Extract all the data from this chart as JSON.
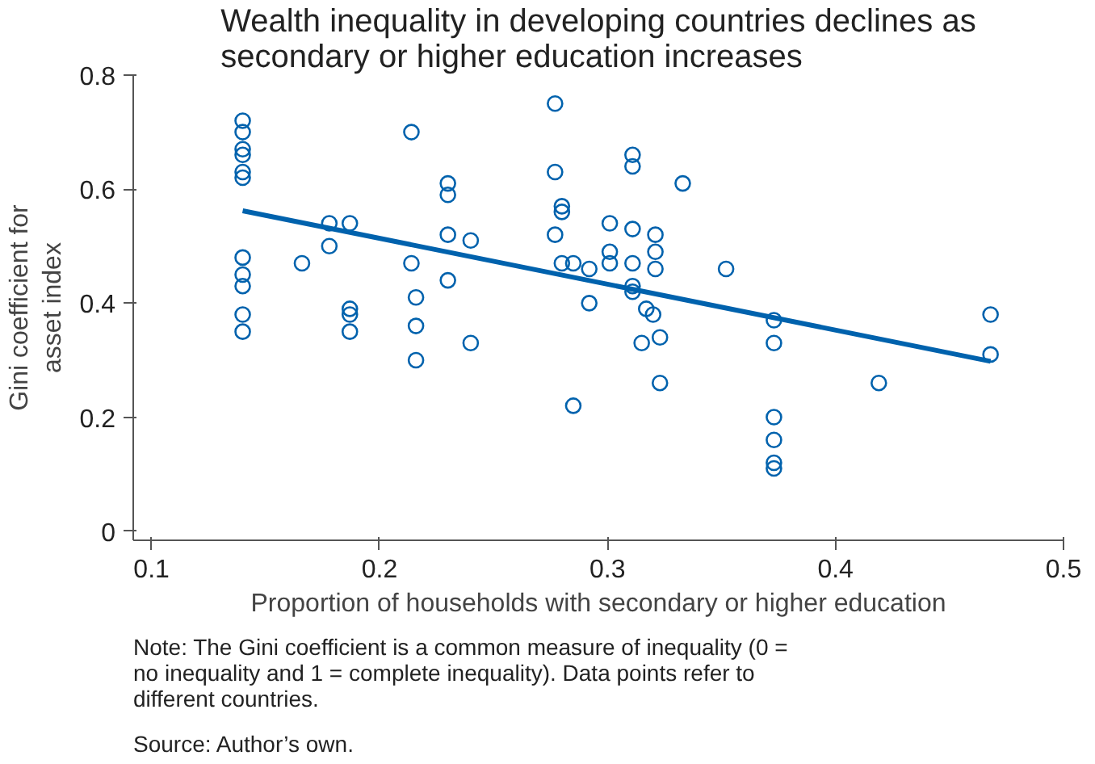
{
  "chart_data": {
    "type": "scatter",
    "title": "Wealth inequality in developing countries declines as secondary or higher education increases",
    "xlabel": "Proportion of households with secondary or higher education",
    "ylabel": "Gini coefficient for asset index",
    "xlim": [
      0.092,
      0.5
    ],
    "ylim": [
      -0.016,
      0.8
    ],
    "xticks": [
      0.1,
      0.2,
      0.3,
      0.4,
      0.5
    ],
    "yticks": [
      0,
      0.2,
      0.4,
      0.6,
      0.8
    ],
    "grid": false,
    "series": [
      {
        "marker": "circle",
        "color": "#0062ad",
        "x": [
          0.14,
          0.14,
          0.14,
          0.14,
          0.14,
          0.14,
          0.14,
          0.14,
          0.14,
          0.14,
          0.14,
          0.166,
          0.178,
          0.178,
          0.187,
          0.187,
          0.187,
          0.187,
          0.214,
          0.214,
          0.216,
          0.216,
          0.216,
          0.23,
          0.23,
          0.23,
          0.23,
          0.24,
          0.24,
          0.277,
          0.277,
          0.28,
          0.28,
          0.277,
          0.28,
          0.285,
          0.292,
          0.292,
          0.285,
          0.301,
          0.301,
          0.301,
          0.311,
          0.311,
          0.311,
          0.311,
          0.311,
          0.311,
          0.317,
          0.32,
          0.323,
          0.315,
          0.321,
          0.321,
          0.321,
          0.323,
          0.333,
          0.352,
          0.373,
          0.373,
          0.373,
          0.373,
          0.373,
          0.373,
          0.419,
          0.468,
          0.468
        ],
        "values": [
          0.72,
          0.7,
          0.67,
          0.66,
          0.63,
          0.62,
          0.48,
          0.45,
          0.43,
          0.38,
          0.35,
          0.47,
          0.54,
          0.5,
          0.54,
          0.39,
          0.38,
          0.35,
          0.7,
          0.47,
          0.41,
          0.36,
          0.3,
          0.61,
          0.59,
          0.52,
          0.44,
          0.51,
          0.33,
          0.75,
          0.63,
          0.57,
          0.56,
          0.52,
          0.47,
          0.47,
          0.46,
          0.4,
          0.22,
          0.54,
          0.49,
          0.47,
          0.66,
          0.64,
          0.53,
          0.47,
          0.43,
          0.42,
          0.39,
          0.38,
          0.34,
          0.33,
          0.52,
          0.49,
          0.46,
          0.26,
          0.61,
          0.46,
          0.37,
          0.33,
          0.2,
          0.16,
          0.12,
          0.11,
          0.26,
          0.38,
          0.31
        ]
      },
      {
        "type": "line",
        "color": "#0062ad",
        "x": [
          0.14,
          0.468
        ],
        "values": [
          0.562,
          0.298
        ]
      }
    ],
    "annotations": [
      "Note: The Gini coefficient is a common measure of inequality (0 = no inequality and 1 = complete inequality). Data points refer to different countries.",
      "Source: Author’s own."
    ]
  }
}
